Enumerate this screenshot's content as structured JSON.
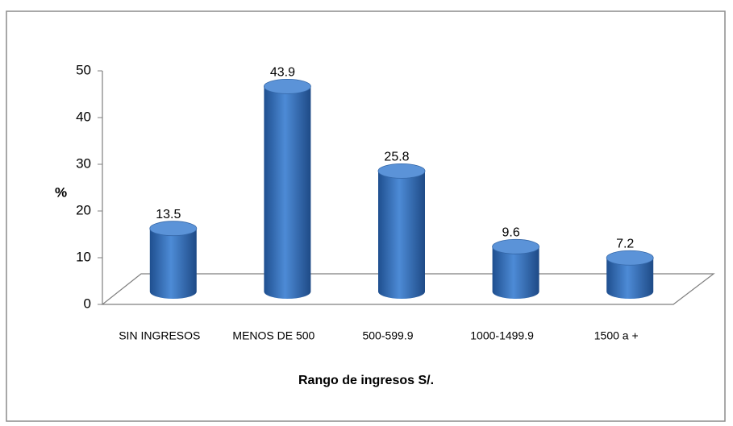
{
  "chart_data": {
    "type": "bar",
    "style": "3d-cylinder",
    "x_label": "Rango de ingresos S/.",
    "y_label": "%",
    "categories": [
      "SIN INGRESOS",
      "MENOS DE 500",
      "500-599.9",
      "1000-1499.9",
      "1500 a +"
    ],
    "values": [
      13.5,
      43.9,
      25.8,
      9.6,
      7.2
    ],
    "color": "#3a6fb5",
    "ylim": [
      0,
      50
    ],
    "yticks": [
      0,
      10,
      20,
      30,
      40,
      50
    ],
    "grid": false,
    "value_labels_shown": true
  }
}
